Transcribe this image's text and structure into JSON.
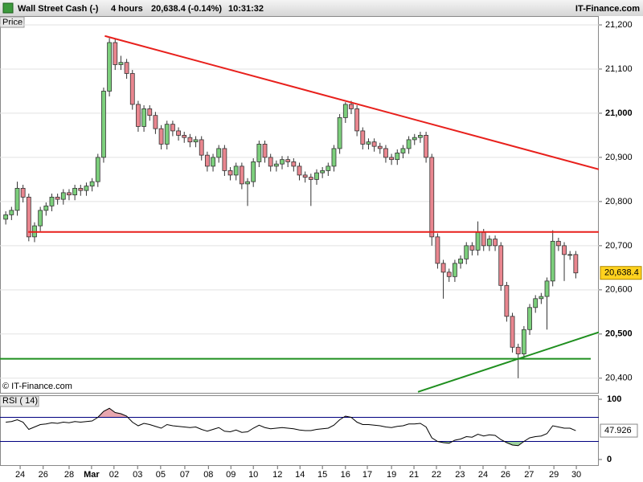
{
  "chart_data": {
    "type": "candlestick",
    "title": "Wall Street Cash (-)",
    "period": "4 hours",
    "quote": "20,638.4 (-0.14%)",
    "time": "10:31:32",
    "brand": "IT-Finance.com",
    "panel_label": "Price",
    "copyright": "© IT-Finance.com",
    "up_color": "#7ccf7c",
    "down_color": "#e9868f",
    "grid": true,
    "open": [
      20760,
      20770,
      20780,
      20830,
      20810,
      20720,
      20745,
      20780,
      20790,
      20810,
      20805,
      20820,
      20815,
      20830,
      20825,
      20835,
      20845,
      20900,
      21050,
      21160,
      21110,
      21115,
      21090,
      21020,
      20970,
      21010,
      20995,
      20965,
      20930,
      20975,
      20960,
      20950,
      20945,
      20935,
      20940,
      20905,
      20880,
      20900,
      20920,
      20870,
      20860,
      20880,
      20840,
      20845,
      20890,
      20930,
      20900,
      20880,
      20885,
      20895,
      20890,
      20880,
      20860,
      20855,
      20850,
      20865,
      20870,
      20880,
      20920,
      20990,
      21020,
      21010,
      20960,
      20930,
      20935,
      20925,
      20920,
      20900,
      20895,
      20910,
      20920,
      20940,
      20945,
      20950,
      20900,
      20720,
      20660,
      20640,
      20630,
      20660,
      20670,
      20700,
      20690,
      20730,
      20700,
      20715,
      20700,
      20610,
      20540,
      20470,
      20455,
      20510,
      20560,
      20580,
      20585,
      20620,
      20710,
      20700,
      20680,
      20680
    ],
    "high": [
      20778,
      20788,
      20845,
      20838,
      20818,
      20753,
      20788,
      20798,
      20818,
      20818,
      20828,
      20828,
      20838,
      20838,
      20843,
      20853,
      20908,
      21058,
      21170,
      21168,
      21130,
      21123,
      21098,
      21028,
      21018,
      21018,
      21003,
      20973,
      20983,
      20983,
      20968,
      20958,
      20953,
      20948,
      20948,
      20913,
      20908,
      20928,
      20928,
      20878,
      20888,
      20888,
      20853,
      20898,
      20938,
      20938,
      20908,
      20893,
      20903,
      20903,
      20898,
      20888,
      20868,
      20863,
      20873,
      20878,
      20888,
      20928,
      20998,
      21025,
      21028,
      21018,
      20968,
      20943,
      20943,
      20933,
      20928,
      20908,
      20918,
      20928,
      20948,
      20953,
      20958,
      20958,
      20908,
      20728,
      20668,
      20648,
      20668,
      20678,
      20708,
      20708,
      20755,
      20738,
      20723,
      20723,
      20708,
      20618,
      20548,
      20478,
      20518,
      20568,
      20588,
      20593,
      20628,
      20735,
      20718,
      20708,
      20688,
      20688
    ],
    "low": [
      20748,
      20758,
      20768,
      20798,
      20710,
      20708,
      20733,
      20768,
      20778,
      20793,
      20793,
      20803,
      20803,
      20813,
      20813,
      20823,
      20833,
      20888,
      21038,
      21098,
      21098,
      21078,
      21008,
      20958,
      20958,
      20983,
      20953,
      20918,
      20918,
      20948,
      20938,
      20933,
      20923,
      20923,
      20893,
      20868,
      20868,
      20888,
      20858,
      20848,
      20848,
      20828,
      20790,
      20833,
      20878,
      20888,
      20868,
      20868,
      20873,
      20878,
      20868,
      20848,
      20843,
      20790,
      20838,
      20853,
      20858,
      20868,
      20908,
      20978,
      20998,
      20948,
      20918,
      20918,
      20913,
      20908,
      20888,
      20883,
      20883,
      20898,
      20908,
      20928,
      20933,
      20888,
      20700,
      20648,
      20580,
      20618,
      20618,
      20648,
      20658,
      20678,
      20678,
      20688,
      20688,
      20688,
      20598,
      20528,
      20458,
      20400,
      20443,
      20498,
      20548,
      20568,
      20510,
      20608,
      20688,
      20620,
      20668,
      20626
    ],
    "close": [
      20770,
      20780,
      20830,
      20810,
      20720,
      20745,
      20780,
      20790,
      20810,
      20805,
      20820,
      20815,
      20830,
      20825,
      20835,
      20845,
      20900,
      21050,
      21160,
      21110,
      21115,
      21090,
      21020,
      20970,
      21010,
      20995,
      20965,
      20930,
      20975,
      20960,
      20950,
      20945,
      20935,
      20940,
      20905,
      20880,
      20900,
      20920,
      20870,
      20860,
      20880,
      20840,
      20845,
      20890,
      20930,
      20900,
      20880,
      20885,
      20895,
      20890,
      20880,
      20860,
      20855,
      20850,
      20865,
      20870,
      20880,
      20920,
      20990,
      21020,
      21010,
      20960,
      20930,
      20935,
      20925,
      20920,
      20900,
      20895,
      20910,
      20920,
      20940,
      20945,
      20950,
      20900,
      20720,
      20660,
      20640,
      20630,
      20660,
      20670,
      20700,
      20690,
      20730,
      20700,
      20715,
      20700,
      20610,
      20540,
      20470,
      20455,
      20510,
      20560,
      20580,
      20585,
      20620,
      20710,
      20700,
      20680,
      20680,
      20638.4
    ],
    "last_close_label": "20,638.4",
    "xlim": [
      -1,
      103
    ],
    "xticks": [
      {
        "value": 2.5,
        "label": "24"
      },
      {
        "value": 6.5,
        "label": "26"
      },
      {
        "value": 11,
        "label": "28"
      },
      {
        "value": 14.9,
        "label": "Mar",
        "bold": true
      },
      {
        "value": 18.8,
        "label": "02"
      },
      {
        "value": 22.9,
        "label": "03"
      },
      {
        "value": 26.9,
        "label": "05"
      },
      {
        "value": 31.1,
        "label": "07"
      },
      {
        "value": 35.2,
        "label": "08"
      },
      {
        "value": 39.1,
        "label": "09"
      },
      {
        "value": 43,
        "label": "10"
      },
      {
        "value": 47.2,
        "label": "12"
      },
      {
        "value": 51.1,
        "label": "14"
      },
      {
        "value": 55,
        "label": "15"
      },
      {
        "value": 59,
        "label": "16"
      },
      {
        "value": 62.8,
        "label": "17"
      },
      {
        "value": 67,
        "label": "19"
      },
      {
        "value": 70.9,
        "label": "21"
      },
      {
        "value": 74.8,
        "label": "22"
      },
      {
        "value": 78.9,
        "label": "23"
      },
      {
        "value": 82.9,
        "label": "24"
      },
      {
        "value": 86.8,
        "label": "26"
      },
      {
        "value": 90.9,
        "label": "27"
      },
      {
        "value": 95.2,
        "label": "29"
      },
      {
        "value": 99.1,
        "label": "30"
      }
    ],
    "ylim": [
      20365,
      21220
    ],
    "yticks": [
      {
        "value": 20400,
        "label": "20,400"
      },
      {
        "value": 20500,
        "label": "20,500",
        "bold": true
      },
      {
        "value": 20600,
        "label": "20,600"
      },
      {
        "value": 20700,
        "label": "20,700"
      },
      {
        "value": 20800,
        "label": "20,800"
      },
      {
        "value": 20900,
        "label": "20,900"
      },
      {
        "value": 21000,
        "label": "21,000",
        "bold": true
      },
      {
        "value": 21100,
        "label": "21,100"
      },
      {
        "value": 21200,
        "label": "21,200"
      }
    ],
    "lines": [
      {
        "x": [
          17.2,
          103
        ],
        "y": [
          21175,
          20873
        ],
        "color": "#e8201c"
      },
      {
        "x": [
          3.9,
          103
        ],
        "y": [
          20731,
          20731
        ],
        "color": "#e8201c"
      },
      {
        "x": [
          -1,
          101.6
        ],
        "y": [
          20444,
          20444
        ],
        "color": "#1f8f1f"
      },
      {
        "x": [
          71.6,
          103
        ],
        "y": [
          20369,
          20504
        ],
        "color": "#1f8f1f"
      }
    ],
    "rsi": {
      "label": "RSI ( 14)",
      "color": "#000000",
      "level_color": "#000080",
      "levels": [
        30,
        70
      ],
      "high_fill": "#e8a6ae",
      "low_fill": "#9fd39f",
      "ylim": [
        -10.7,
        106.7
      ],
      "yticks": [
        0,
        100
      ],
      "values": [
        62,
        63,
        66,
        62,
        50,
        54,
        58,
        59,
        61,
        60,
        62,
        61,
        63,
        62,
        63,
        64,
        70,
        80,
        85,
        78,
        76,
        72,
        62,
        56,
        60,
        58,
        55,
        52,
        58,
        56,
        55,
        54,
        53,
        54,
        50,
        47,
        50,
        53,
        47,
        46,
        49,
        45,
        46,
        52,
        57,
        53,
        51,
        52,
        53,
        52,
        51,
        49,
        48,
        48,
        50,
        51,
        52,
        57,
        66,
        72,
        70,
        62,
        58,
        58,
        57,
        56,
        54,
        53,
        55,
        56,
        59,
        59,
        60,
        54,
        36,
        30,
        28,
        27,
        32,
        34,
        38,
        37,
        42,
        39,
        41,
        40,
        33,
        28,
        24,
        23,
        30,
        36,
        38,
        39,
        43,
        56,
        54,
        52,
        52,
        47.926
      ]
    }
  }
}
